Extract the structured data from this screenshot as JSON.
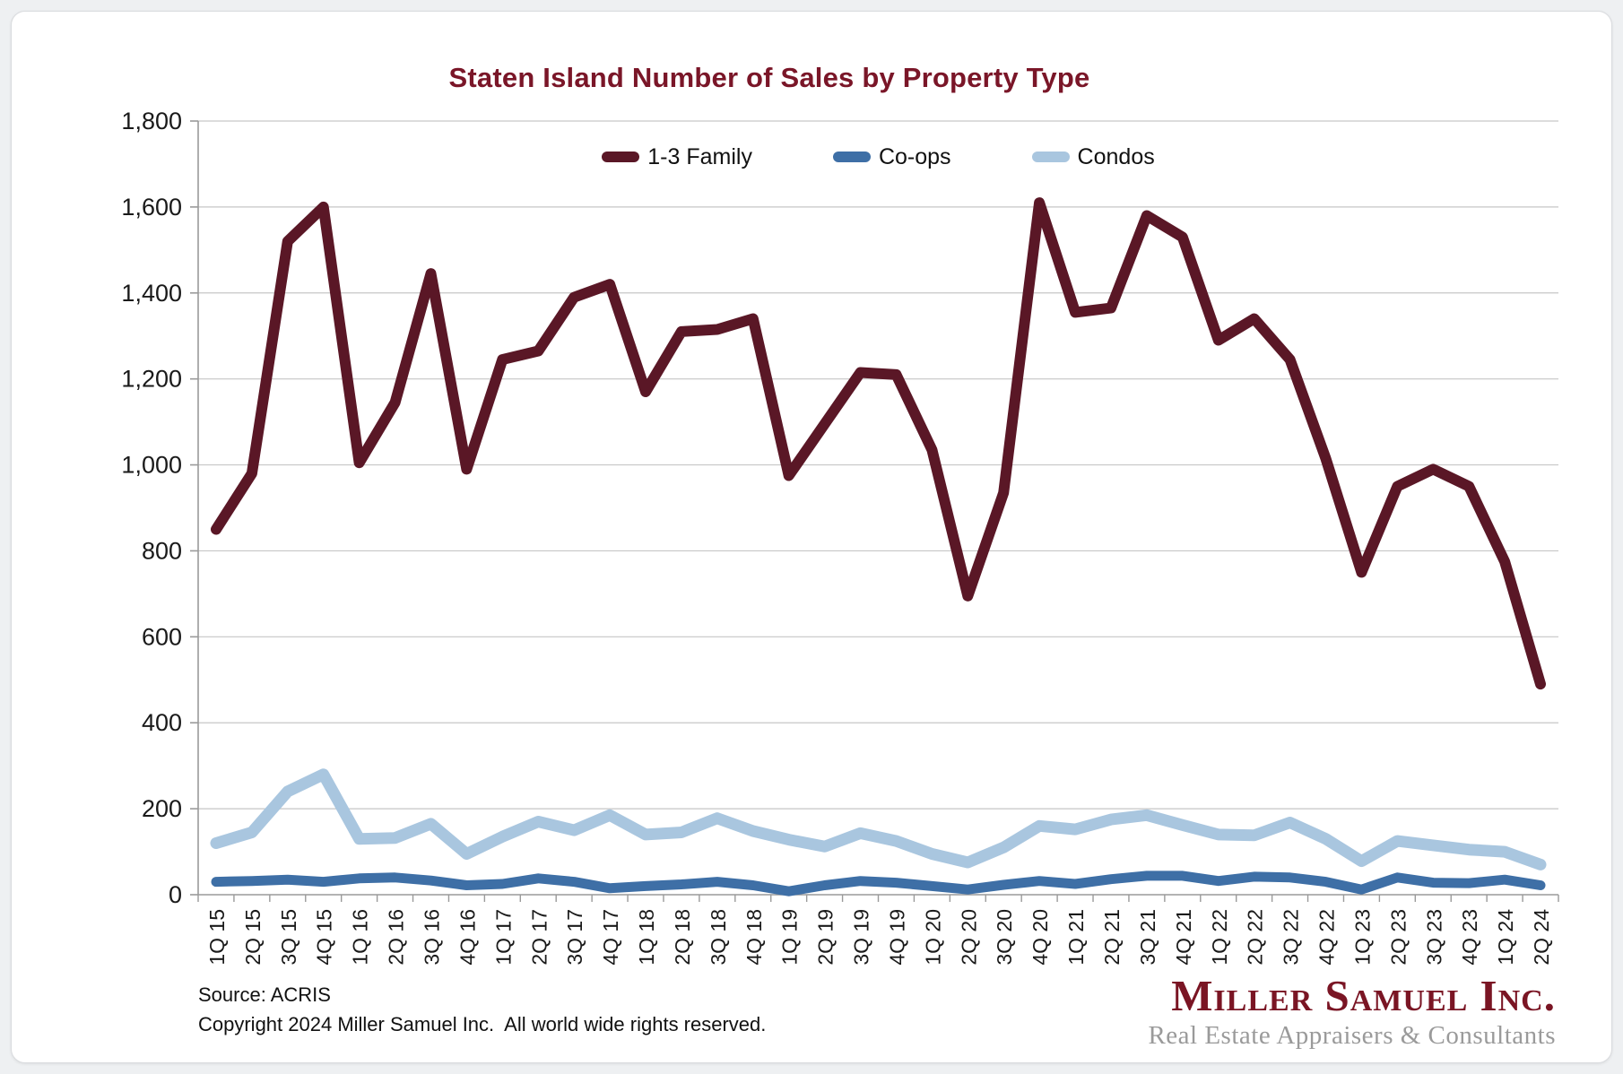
{
  "chart": {
    "title": "Staten Island Number of Sales by Property Type"
  },
  "chart_data": {
    "type": "line",
    "title": "Staten Island Number of Sales by Property Type",
    "xlabel": "",
    "ylabel": "",
    "ylim": [
      0,
      1800
    ],
    "ytick_step": 200,
    "grid": true,
    "legend_position": "top-center",
    "categories": [
      "1Q 15",
      "2Q 15",
      "3Q 15",
      "4Q 15",
      "1Q 16",
      "2Q 16",
      "3Q 16",
      "4Q 16",
      "1Q 17",
      "2Q 17",
      "3Q 17",
      "4Q 17",
      "1Q 18",
      "2Q 18",
      "3Q 18",
      "4Q 18",
      "1Q 19",
      "2Q 19",
      "3Q 19",
      "4Q 19",
      "1Q 20",
      "2Q 20",
      "3Q 20",
      "4Q 20",
      "1Q 21",
      "2Q 21",
      "3Q 21",
      "4Q 21",
      "1Q 22",
      "2Q 22",
      "3Q 22",
      "4Q 22",
      "1Q 23",
      "2Q 23",
      "3Q 23",
      "4Q 23",
      "1Q 24",
      "2Q 24"
    ],
    "series": [
      {
        "name": "1-3 Family",
        "color": "#5a1726",
        "line_width": 12,
        "values": [
          850,
          980,
          1520,
          1600,
          1005,
          1145,
          1445,
          990,
          1245,
          1265,
          1390,
          1420,
          1170,
          1310,
          1315,
          1340,
          975,
          1095,
          1215,
          1210,
          1035,
          695,
          935,
          1610,
          1355,
          1365,
          1580,
          1530,
          1290,
          1340,
          1245,
          1015,
          750,
          950,
          990,
          950,
          775,
          490
        ]
      },
      {
        "name": "Co-ops",
        "color": "#3e6fa6",
        "line_width": 11,
        "values": [
          30,
          32,
          35,
          30,
          38,
          40,
          33,
          22,
          25,
          38,
          30,
          15,
          20,
          24,
          30,
          22,
          8,
          22,
          32,
          28,
          20,
          12,
          23,
          32,
          25,
          36,
          44,
          44,
          32,
          42,
          40,
          30,
          12,
          40,
          28,
          27,
          35,
          22
        ]
      },
      {
        "name": "Condos",
        "color": "#a9c6df",
        "line_width": 13,
        "values": [
          120,
          145,
          240,
          280,
          130,
          132,
          165,
          95,
          135,
          170,
          150,
          185,
          140,
          145,
          178,
          148,
          128,
          112,
          143,
          125,
          95,
          75,
          110,
          160,
          152,
          175,
          185,
          162,
          140,
          138,
          168,
          130,
          78,
          125,
          115,
          105,
          100,
          70
        ]
      }
    ],
    "axis_colors": {
      "gridline": "#c6c6c6",
      "axis_line": "#9a9a9a",
      "tick_label": "#1a1a1a"
    }
  },
  "footer": {
    "source": "Source: ACRIS",
    "copyright": "Copyright 2024 Miller Samuel Inc.  All world wide rights reserved."
  },
  "logo": {
    "name": "Miller Samuel Inc.",
    "tagline": "Real Estate Appraisers & Consultants"
  }
}
